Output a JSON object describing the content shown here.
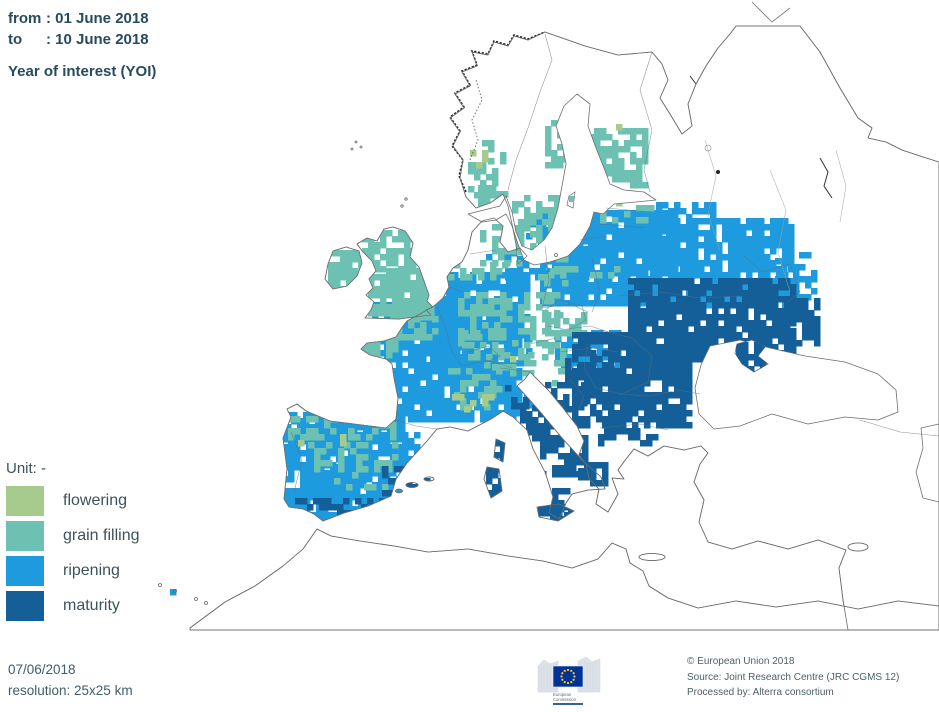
{
  "header": {
    "from_label": "from",
    "from_value": ": 01 June 2018",
    "to_label": "to",
    "to_value": ": 10 June 2018",
    "title": "Year of interest (YOI)"
  },
  "legend": {
    "unit_label": "Unit: -",
    "items": [
      {
        "label": "flowering",
        "color": "#a7cb8d"
      },
      {
        "label": "grain filling",
        "color": "#6cc1b2"
      },
      {
        "label": "ripening",
        "color": "#1e9ade"
      },
      {
        "label": "maturity",
        "color": "#145f98"
      }
    ]
  },
  "map": {
    "land_color": "#ffffff",
    "coastline_color": "#6e6e6e"
  },
  "footer": {
    "date": "07/06/2018",
    "resolution": "resolution: 25x25 km",
    "logo_caption_line1": "European",
    "logo_caption_line2": "Commission",
    "credits": [
      "© European Union 2018",
      "Source: Joint Research Centre (JRC CGMS 12)",
      "Processed by: Alterra consortium"
    ]
  }
}
